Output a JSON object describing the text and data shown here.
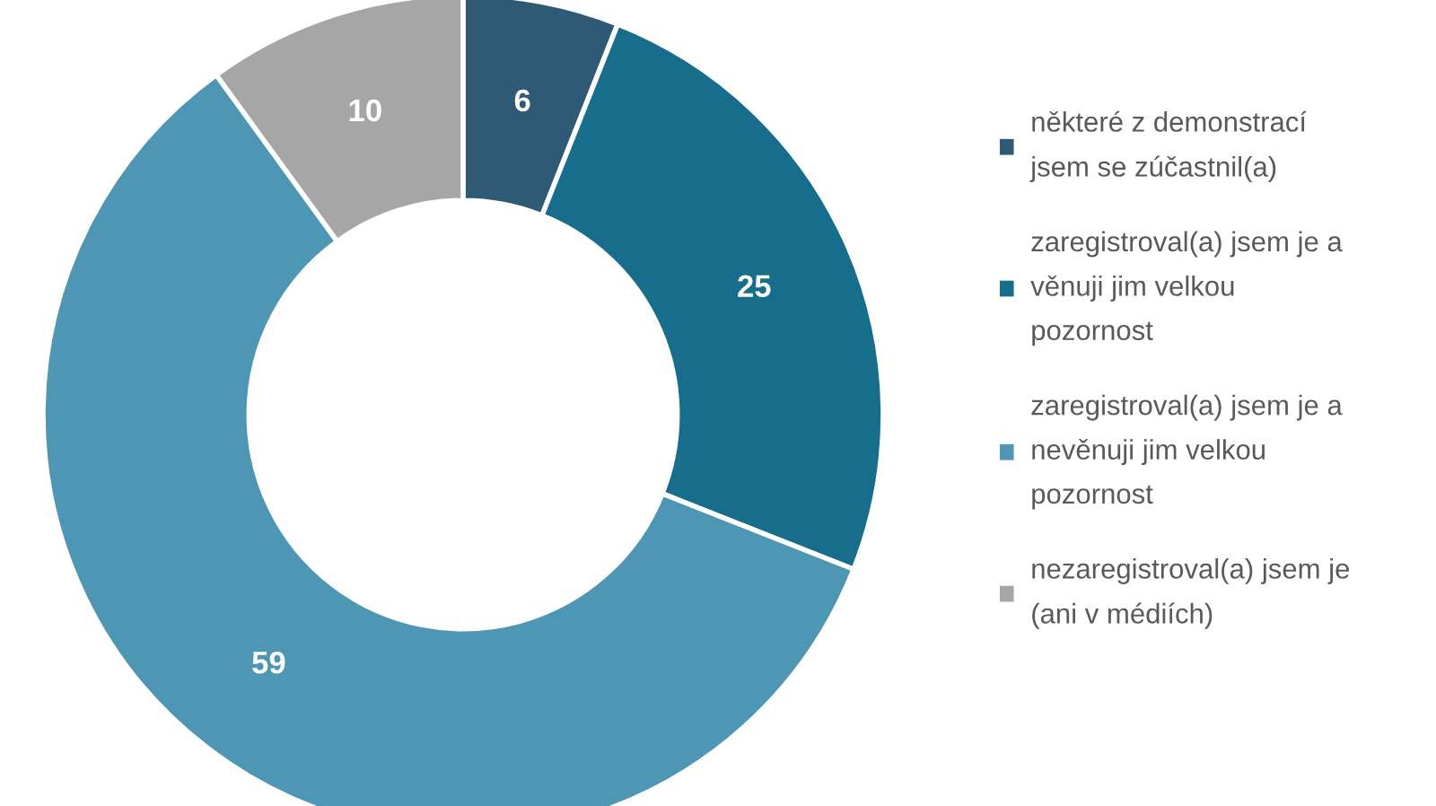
{
  "chart_data": {
    "type": "donut",
    "categories": [
      "některé z demonstrací\njsem se zúčastnil(a)",
      "zaregistroval(a) jsem je a\nvěnuji jim velkou\npozornost",
      "zaregistroval(a) jsem je a\nnevěnuji jim velkou\npozornost",
      "nezaregistroval(a) jsem je\n(ani v médiích)"
    ],
    "values": [
      6,
      25,
      59,
      10
    ],
    "colors": [
      "#2f5a75",
      "#176d8c",
      "#4d97b5",
      "#a6a6a6"
    ],
    "data_labels": true,
    "legend": "right"
  }
}
